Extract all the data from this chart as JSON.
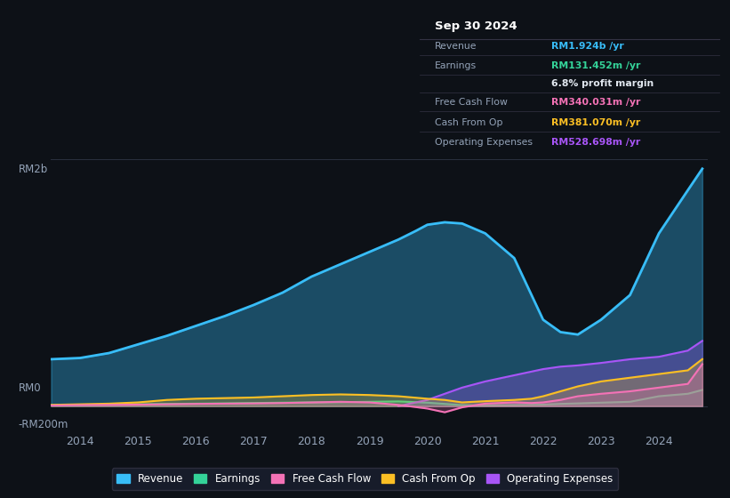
{
  "bg_color": "#0d1117",
  "chart_bg": "#0d1117",
  "info_box_bg": "#111827",
  "info_box_border": "#333344",
  "grid_color": "#2a3040",
  "text_color": "#94a3b8",
  "white": "#ffffff",
  "ylim": [
    -200,
    2000
  ],
  "xlabel_years": [
    2014,
    2015,
    2016,
    2017,
    2018,
    2019,
    2020,
    2021,
    2022,
    2023,
    2024
  ],
  "info_title": "Sep 30 2024",
  "info_rows": [
    {
      "label": "Revenue",
      "value": "RM1.924b /yr",
      "value_color": "#38bdf8"
    },
    {
      "label": "Earnings",
      "value": "RM131.452m /yr",
      "value_color": "#34d399"
    },
    {
      "label": "",
      "value": "6.8% profit margin",
      "value_color": "#e2e8f0"
    },
    {
      "label": "Free Cash Flow",
      "value": "RM340.031m /yr",
      "value_color": "#f472b6"
    },
    {
      "label": "Cash From Op",
      "value": "RM381.070m /yr",
      "value_color": "#fbbf24"
    },
    {
      "label": "Operating Expenses",
      "value": "RM528.698m /yr",
      "value_color": "#a855f7"
    }
  ],
  "series": {
    "Revenue": {
      "color": "#38bdf8",
      "fill_alpha": 0.35,
      "lw": 2.0,
      "x": [
        2013.5,
        2014.0,
        2014.5,
        2015.0,
        2015.5,
        2016.0,
        2016.5,
        2017.0,
        2017.5,
        2018.0,
        2018.5,
        2019.0,
        2019.5,
        2019.8,
        2020.0,
        2020.3,
        2020.6,
        2021.0,
        2021.5,
        2021.8,
        2022.0,
        2022.3,
        2022.6,
        2023.0,
        2023.5,
        2024.0,
        2024.5,
        2024.75
      ],
      "y": [
        380,
        390,
        430,
        500,
        570,
        650,
        730,
        820,
        920,
        1050,
        1150,
        1250,
        1350,
        1420,
        1470,
        1490,
        1480,
        1400,
        1200,
        900,
        700,
        600,
        580,
        700,
        900,
        1400,
        1750,
        1924
      ]
    },
    "Earnings": {
      "color": "#34d399",
      "fill_alpha": 0.2,
      "lw": 1.5,
      "x": [
        2013.5,
        2014.0,
        2014.5,
        2015.0,
        2015.5,
        2016.0,
        2016.5,
        2017.0,
        2017.5,
        2018.0,
        2018.5,
        2019.0,
        2019.5,
        2020.0,
        2020.3,
        2020.6,
        2021.0,
        2021.5,
        2021.8,
        2022.0,
        2022.3,
        2022.6,
        2023.0,
        2023.5,
        2024.0,
        2024.5,
        2024.75
      ],
      "y": [
        8,
        10,
        12,
        15,
        18,
        20,
        22,
        25,
        28,
        30,
        32,
        35,
        38,
        28,
        18,
        8,
        5,
        8,
        10,
        12,
        18,
        22,
        28,
        35,
        80,
        100,
        131
      ]
    },
    "Free Cash Flow": {
      "color": "#f472b6",
      "fill_alpha": 0.25,
      "lw": 1.5,
      "x": [
        2013.5,
        2014.0,
        2014.5,
        2015.0,
        2015.5,
        2016.0,
        2016.5,
        2017.0,
        2017.5,
        2018.0,
        2018.5,
        2019.0,
        2019.5,
        2020.0,
        2020.3,
        2020.6,
        2021.0,
        2021.5,
        2021.8,
        2022.0,
        2022.3,
        2022.6,
        2023.0,
        2023.5,
        2024.0,
        2024.5,
        2024.75
      ],
      "y": [
        5,
        8,
        10,
        12,
        15,
        18,
        20,
        22,
        25,
        30,
        35,
        30,
        10,
        -20,
        -50,
        -10,
        20,
        30,
        25,
        30,
        50,
        80,
        100,
        120,
        150,
        180,
        340
      ]
    },
    "Cash From Op": {
      "color": "#fbbf24",
      "fill_alpha": 0.25,
      "lw": 1.5,
      "x": [
        2013.5,
        2014.0,
        2014.5,
        2015.0,
        2015.5,
        2016.0,
        2016.5,
        2017.0,
        2017.5,
        2018.0,
        2018.5,
        2019.0,
        2019.5,
        2020.0,
        2020.3,
        2020.6,
        2021.0,
        2021.5,
        2021.8,
        2022.0,
        2022.3,
        2022.6,
        2023.0,
        2023.5,
        2024.0,
        2024.5,
        2024.75
      ],
      "y": [
        10,
        15,
        20,
        30,
        50,
        60,
        65,
        70,
        80,
        90,
        95,
        90,
        80,
        60,
        50,
        30,
        40,
        50,
        60,
        80,
        120,
        160,
        200,
        230,
        260,
        290,
        381
      ]
    },
    "Operating Expenses": {
      "color": "#a855f7",
      "fill_alpha": 0.3,
      "lw": 1.5,
      "x": [
        2019.5,
        2020.0,
        2020.3,
        2020.6,
        2021.0,
        2021.5,
        2021.8,
        2022.0,
        2022.3,
        2022.6,
        2023.0,
        2023.5,
        2024.0,
        2024.5,
        2024.75
      ],
      "y": [
        0,
        50,
        100,
        150,
        200,
        250,
        280,
        300,
        320,
        330,
        350,
        380,
        400,
        450,
        529
      ]
    }
  },
  "legend": [
    {
      "label": "Revenue",
      "color": "#38bdf8"
    },
    {
      "label": "Earnings",
      "color": "#34d399"
    },
    {
      "label": "Free Cash Flow",
      "color": "#f472b6"
    },
    {
      "label": "Cash From Op",
      "color": "#fbbf24"
    },
    {
      "label": "Operating Expenses",
      "color": "#a855f7"
    }
  ]
}
